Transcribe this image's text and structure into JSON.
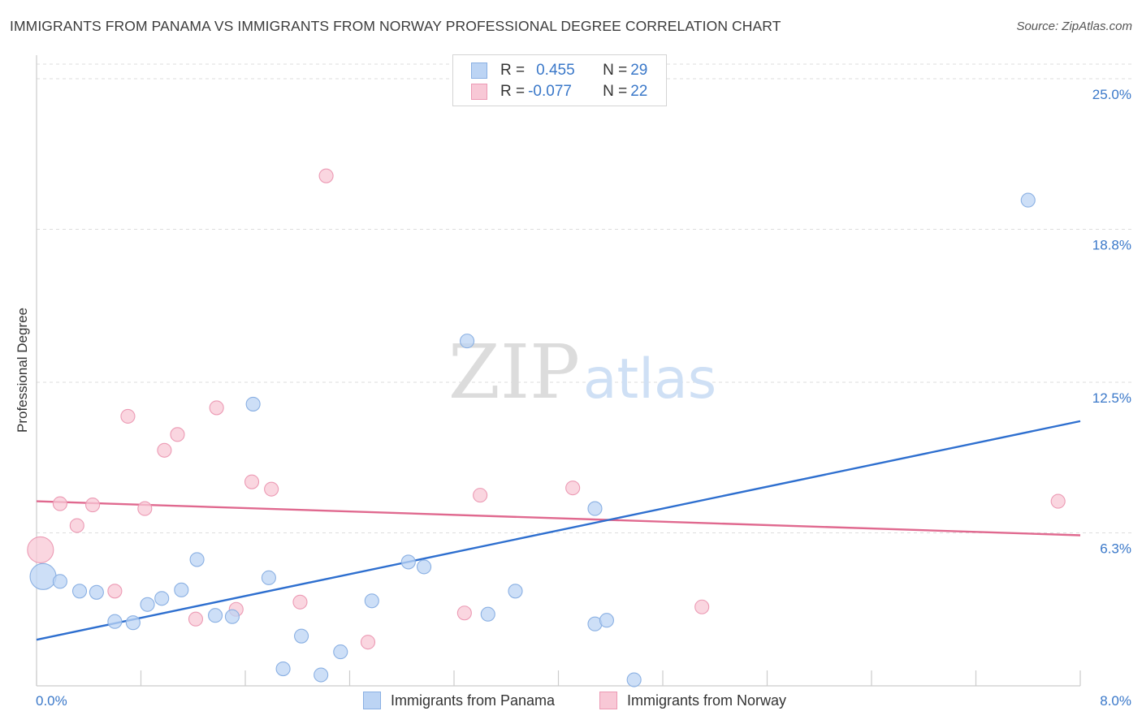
{
  "header": {
    "title": "IMMIGRANTS FROM PANAMA VS IMMIGRANTS FROM NORWAY PROFESSIONAL DEGREE CORRELATION CHART",
    "source": "Source: ZipAtlas.com"
  },
  "watermark": {
    "zip": "ZIP",
    "atlas": "atlas"
  },
  "colors": {
    "panama_fill": "#bcd4f4",
    "panama_stroke": "#8ab0e3",
    "panama_line": "#2e6fcf",
    "norway_fill": "#f8c8d6",
    "norway_stroke": "#ec9ab4",
    "norway_line": "#e0698f",
    "tick_label": "#3a78c9",
    "grid": "#dddddd"
  },
  "legend": {
    "rows": [
      {
        "r_label": "R = ",
        "r_value": "0.455",
        "n_label": "N = ",
        "n_value": "29"
      },
      {
        "r_label": "R = ",
        "r_value": "-0.077",
        "n_label": "N = ",
        "n_value": "22"
      }
    ]
  },
  "bottom_legend": {
    "panama": "Immigrants from Panama",
    "norway": "Immigrants from Norway"
  },
  "chart_data": {
    "type": "scatter",
    "title": "IMMIGRANTS FROM PANAMA VS IMMIGRANTS FROM NORWAY PROFESSIONAL DEGREE CORRELATION CHART",
    "xlabel": "",
    "ylabel": "Professional Degree",
    "xlim": [
      0,
      8.0
    ],
    "ylim": [
      0,
      25.0
    ],
    "x_tick_labels": [
      "0.0%",
      "8.0%"
    ],
    "y_ticks": [
      6.3,
      12.5,
      18.8,
      25.0
    ],
    "y_tick_labels": [
      "6.3%",
      "12.5%",
      "18.8%",
      "25.0%"
    ],
    "grid": true,
    "legend_position": "top-center",
    "series": [
      {
        "name": "Immigrants from Panama",
        "r": 0.455,
        "n": 29,
        "trend": {
          "x": [
            0,
            8.0
          ],
          "y": [
            1.9,
            10.9
          ]
        },
        "points": [
          {
            "x": 0.05,
            "y": 4.5,
            "big": true
          },
          {
            "x": 0.18,
            "y": 4.3
          },
          {
            "x": 0.33,
            "y": 3.9
          },
          {
            "x": 0.46,
            "y": 3.85
          },
          {
            "x": 0.6,
            "y": 2.65
          },
          {
            "x": 0.74,
            "y": 2.6
          },
          {
            "x": 0.85,
            "y": 3.35
          },
          {
            "x": 0.96,
            "y": 3.6
          },
          {
            "x": 1.11,
            "y": 3.95
          },
          {
            "x": 1.23,
            "y": 5.2
          },
          {
            "x": 1.37,
            "y": 2.9
          },
          {
            "x": 1.5,
            "y": 2.85
          },
          {
            "x": 1.66,
            "y": 11.6
          },
          {
            "x": 1.78,
            "y": 4.45
          },
          {
            "x": 1.89,
            "y": 0.7
          },
          {
            "x": 2.03,
            "y": 2.05
          },
          {
            "x": 2.18,
            "y": 0.45
          },
          {
            "x": 2.33,
            "y": 1.4
          },
          {
            "x": 2.57,
            "y": 3.5
          },
          {
            "x": 2.85,
            "y": 5.1
          },
          {
            "x": 2.97,
            "y": 4.9
          },
          {
            "x": 3.3,
            "y": 14.2
          },
          {
            "x": 3.46,
            "y": 2.95
          },
          {
            "x": 3.67,
            "y": 3.9
          },
          {
            "x": 4.28,
            "y": 7.3
          },
          {
            "x": 4.28,
            "y": 2.55
          },
          {
            "x": 4.37,
            "y": 2.7
          },
          {
            "x": 4.58,
            "y": 0.25
          },
          {
            "x": 7.6,
            "y": 20.0
          }
        ]
      },
      {
        "name": "Immigrants from Norway",
        "r": -0.077,
        "n": 22,
        "trend": {
          "x": [
            0,
            8.0
          ],
          "y": [
            7.6,
            6.2
          ]
        },
        "points": [
          {
            "x": 0.03,
            "y": 5.6,
            "big": true
          },
          {
            "x": 0.18,
            "y": 7.5
          },
          {
            "x": 0.31,
            "y": 6.6
          },
          {
            "x": 0.43,
            "y": 7.45
          },
          {
            "x": 0.6,
            "y": 3.9
          },
          {
            "x": 0.7,
            "y": 11.1
          },
          {
            "x": 0.83,
            "y": 7.3
          },
          {
            "x": 0.98,
            "y": 9.7
          },
          {
            "x": 1.08,
            "y": 10.35
          },
          {
            "x": 1.22,
            "y": 2.75
          },
          {
            "x": 1.38,
            "y": 11.45
          },
          {
            "x": 1.53,
            "y": 3.15
          },
          {
            "x": 1.65,
            "y": 8.4
          },
          {
            "x": 1.8,
            "y": 8.1
          },
          {
            "x": 2.02,
            "y": 3.45
          },
          {
            "x": 2.22,
            "y": 21.0
          },
          {
            "x": 2.54,
            "y": 1.8
          },
          {
            "x": 3.28,
            "y": 3.0
          },
          {
            "x": 3.4,
            "y": 7.85
          },
          {
            "x": 4.11,
            "y": 8.15
          },
          {
            "x": 5.1,
            "y": 3.25
          },
          {
            "x": 7.83,
            "y": 7.6
          }
        ]
      }
    ]
  }
}
